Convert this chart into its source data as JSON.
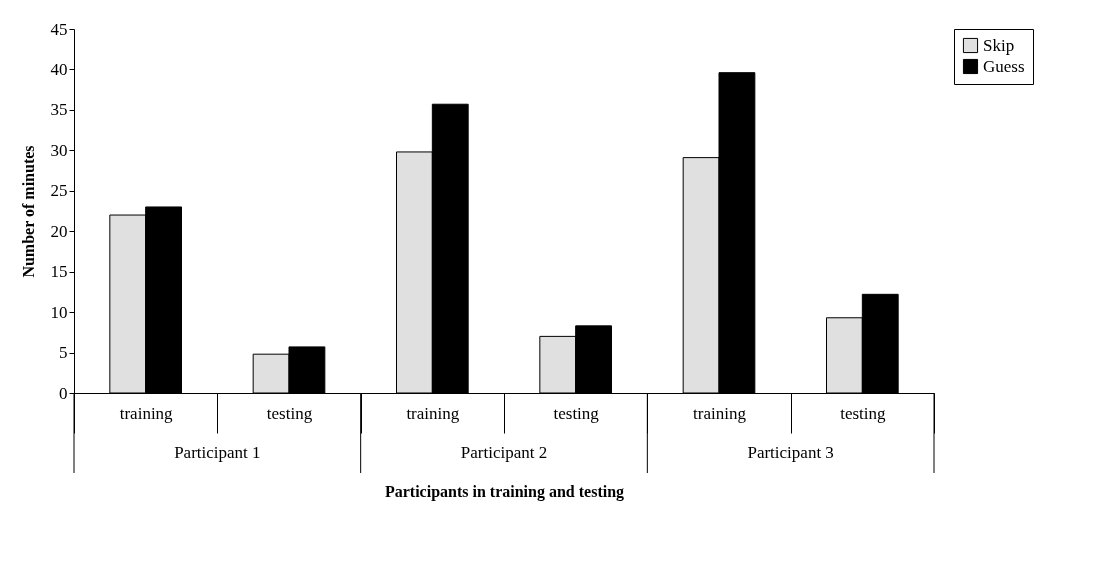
{
  "chart_data": {
    "type": "bar",
    "xlabel": "Participants in training and testing",
    "ylabel": "Number of minutes",
    "categories": [
      "training",
      "testing",
      "training",
      "testing",
      "training",
      "testing"
    ],
    "series": [
      {
        "name": "Skip",
        "color": "#e0e0e0",
        "values": [
          22.0,
          4.8,
          29.8,
          7.0,
          29.1,
          9.3
        ]
      },
      {
        "name": "Guess",
        "color": "#000000",
        "values": [
          23.0,
          5.7,
          35.7,
          8.3,
          39.6,
          12.2
        ]
      }
    ],
    "annotations": [
      "Participant 1",
      "Participant 2",
      "Participant 3"
    ],
    "ylim": [
      0,
      45
    ],
    "yticks": [
      0,
      5,
      10,
      15,
      20,
      25,
      30,
      35,
      40,
      45
    ],
    "grid": false,
    "legend": "right"
  }
}
